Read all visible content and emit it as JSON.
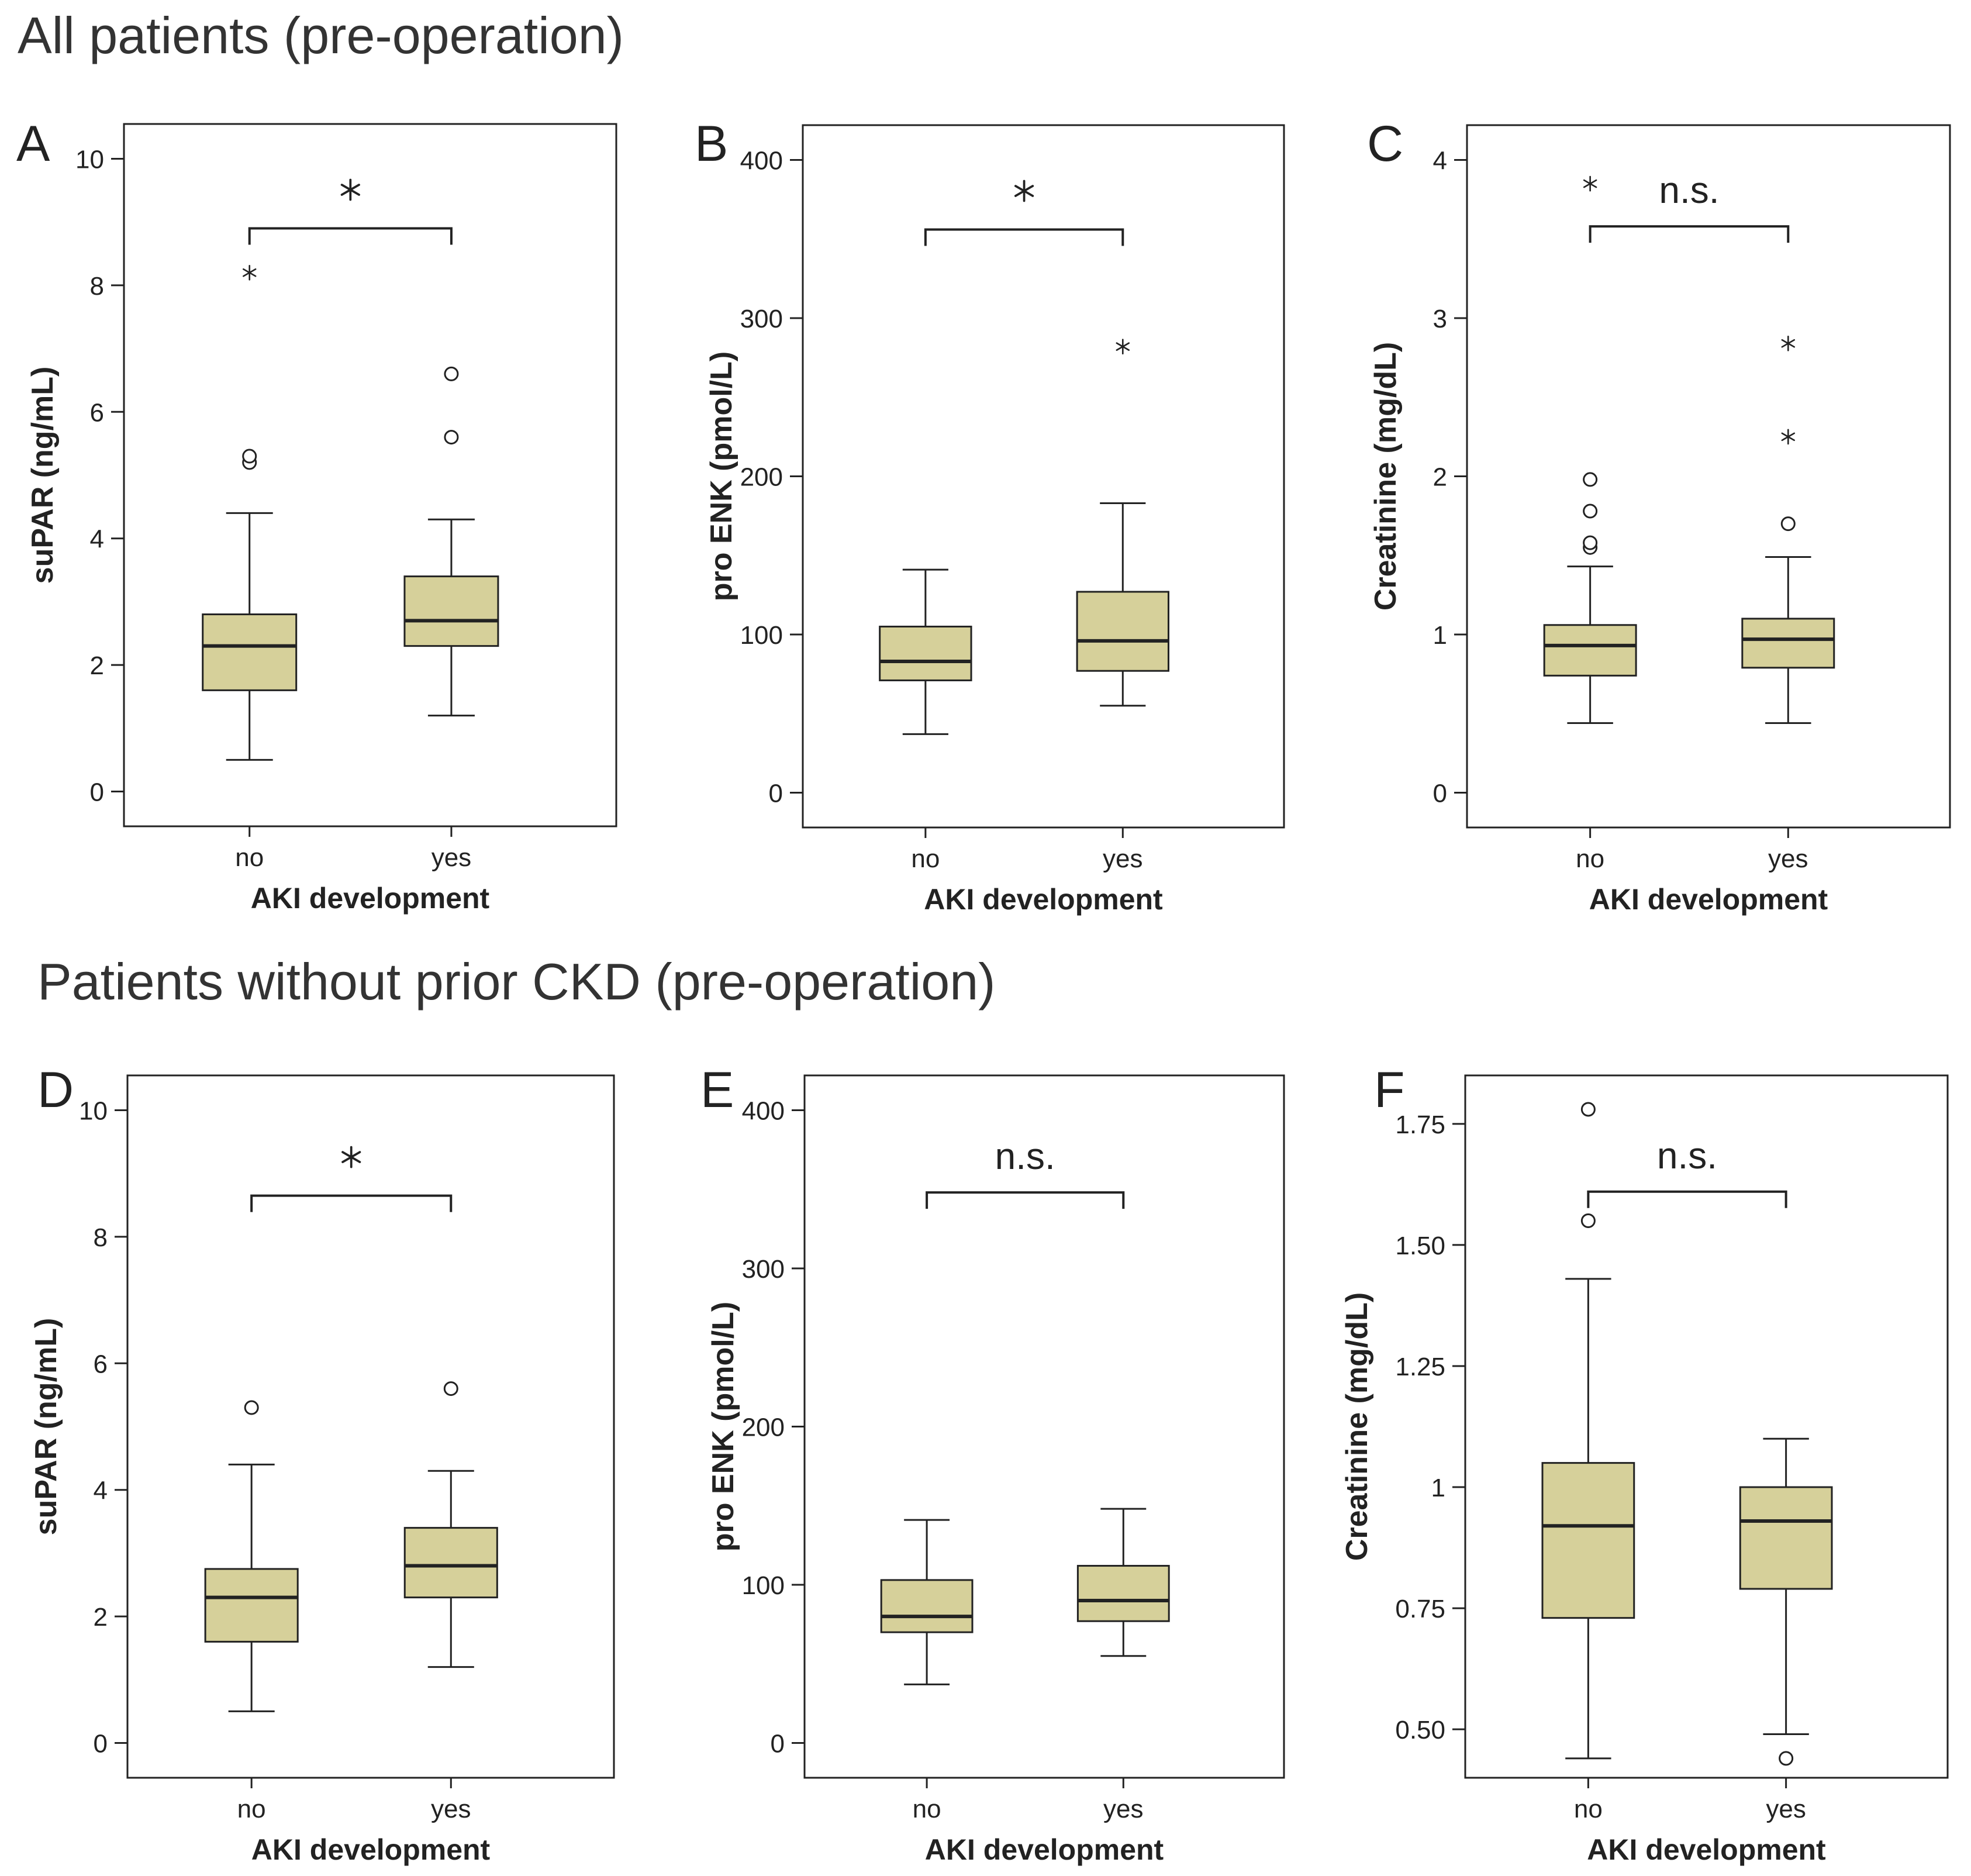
{
  "figure": {
    "section_titles": [
      "All patients (pre-operation)",
      "Patients without prior CKD (pre-operation)"
    ],
    "box_fill": "#d6d09a",
    "line_color": "#222222",
    "xlabel": "AKI development",
    "categories": [
      "no",
      "yes"
    ]
  },
  "chart_data": [
    {
      "type": "boxplot",
      "panel": "A",
      "ylabel": "suPAR (ng/mL)",
      "xlabel": "AKI development",
      "categories": [
        "no",
        "yes"
      ],
      "ylim": [
        -0.55,
        10.55
      ],
      "yticks": [
        0,
        2,
        4,
        6,
        8,
        10
      ],
      "ytick_labels": [
        "0",
        "2",
        "4",
        "6",
        "8",
        "10"
      ],
      "significance": "*",
      "bracket_y": 8.9,
      "boxes": [
        {
          "category": "no",
          "whisker_low": 0.5,
          "q1": 1.6,
          "median": 2.3,
          "q3": 2.8,
          "whisker_high": 4.4,
          "outliers": [
            5.2,
            5.3
          ],
          "extremes": [
            8.2
          ]
        },
        {
          "category": "yes",
          "whisker_low": 1.2,
          "q1": 2.3,
          "median": 2.7,
          "q3": 3.4,
          "whisker_high": 4.3,
          "outliers": [
            5.6,
            6.6
          ],
          "extremes": []
        }
      ]
    },
    {
      "type": "boxplot",
      "panel": "B",
      "ylabel": "pro ENK (pmol/L)",
      "xlabel": "AKI development",
      "categories": [
        "no",
        "yes"
      ],
      "ylim": [
        -22,
        422
      ],
      "yticks": [
        0,
        100,
        200,
        300,
        400
      ],
      "ytick_labels": [
        "0",
        "100",
        "200",
        "300",
        "400"
      ],
      "significance": "*",
      "bracket_y": 356,
      "boxes": [
        {
          "category": "no",
          "whisker_low": 37,
          "q1": 71,
          "median": 83,
          "q3": 105,
          "whisker_high": 141,
          "outliers": [],
          "extremes": []
        },
        {
          "category": "yes",
          "whisker_low": 55,
          "q1": 77,
          "median": 96,
          "q3": 127,
          "whisker_high": 183,
          "outliers": [],
          "extremes": [
            282
          ]
        }
      ]
    },
    {
      "type": "boxplot",
      "panel": "C",
      "ylabel": "Creatinine (mg/dL)",
      "xlabel": "AKI development",
      "categories": [
        "no",
        "yes"
      ],
      "ylim": [
        -0.22,
        4.22
      ],
      "yticks": [
        0,
        1,
        2,
        3,
        4
      ],
      "ytick_labels": [
        "0",
        "1",
        "2",
        "3",
        "4"
      ],
      "significance": "n.s.",
      "bracket_y": 3.58,
      "boxes": [
        {
          "category": "no",
          "whisker_low": 0.44,
          "q1": 0.74,
          "median": 0.93,
          "q3": 1.06,
          "whisker_high": 1.43,
          "outliers": [
            1.55,
            1.58,
            1.78,
            1.98
          ],
          "extremes": [
            3.85
          ]
        },
        {
          "category": "yes",
          "whisker_low": 0.44,
          "q1": 0.79,
          "median": 0.97,
          "q3": 1.1,
          "whisker_high": 1.49,
          "outliers": [
            1.7
          ],
          "extremes": [
            2.25,
            2.84
          ]
        }
      ]
    },
    {
      "type": "boxplot",
      "panel": "D",
      "ylabel": "suPAR (ng/mL)",
      "xlabel": "AKI development",
      "categories": [
        "no",
        "yes"
      ],
      "ylim": [
        -0.55,
        10.55
      ],
      "yticks": [
        0,
        2,
        4,
        6,
        8,
        10
      ],
      "ytick_labels": [
        "0",
        "2",
        "4",
        "6",
        "8",
        "10"
      ],
      "significance": "*",
      "bracket_y": 8.65,
      "boxes": [
        {
          "category": "no",
          "whisker_low": 0.5,
          "q1": 1.6,
          "median": 2.3,
          "q3": 2.75,
          "whisker_high": 4.4,
          "outliers": [
            5.3
          ],
          "extremes": []
        },
        {
          "category": "yes",
          "whisker_low": 1.2,
          "q1": 2.3,
          "median": 2.8,
          "q3": 3.4,
          "whisker_high": 4.3,
          "outliers": [
            5.6
          ],
          "extremes": []
        }
      ]
    },
    {
      "type": "boxplot",
      "panel": "E",
      "ylabel": "pro ENK (pmol/L)",
      "xlabel": "AKI development",
      "categories": [
        "no",
        "yes"
      ],
      "ylim": [
        -22,
        422
      ],
      "yticks": [
        0,
        100,
        200,
        300,
        400
      ],
      "ytick_labels": [
        "0",
        "100",
        "200",
        "300",
        "400"
      ],
      "significance": "n.s.",
      "bracket_y": 348,
      "boxes": [
        {
          "category": "no",
          "whisker_low": 37,
          "q1": 70,
          "median": 80,
          "q3": 103,
          "whisker_high": 141,
          "outliers": [],
          "extremes": []
        },
        {
          "category": "yes",
          "whisker_low": 55,
          "q1": 77,
          "median": 90,
          "q3": 112,
          "whisker_high": 148,
          "outliers": [],
          "extremes": []
        }
      ]
    },
    {
      "type": "boxplot",
      "panel": "F",
      "ylabel": "Creatinine (mg/dL)",
      "xlabel": "AKI development",
      "categories": [
        "no",
        "yes"
      ],
      "ylim": [
        0.4,
        1.85
      ],
      "yticks": [
        0.5,
        0.75,
        1,
        1.25,
        1.5,
        1.75
      ],
      "ytick_labels": [
        "0.50",
        "0.75",
        "1",
        "1.25",
        "1.50",
        "1.75"
      ],
      "significance": "n.s.",
      "bracket_y": 1.61,
      "boxes": [
        {
          "category": "no",
          "whisker_low": 0.44,
          "q1": 0.73,
          "median": 0.92,
          "q3": 1.05,
          "whisker_high": 1.43,
          "outliers": [
            1.55,
            1.78
          ],
          "extremes": []
        },
        {
          "category": "yes",
          "whisker_low": 0.49,
          "q1": 0.79,
          "median": 0.93,
          "q3": 1.0,
          "whisker_high": 1.1,
          "outliers": [
            0.44
          ],
          "extremes": []
        }
      ]
    }
  ]
}
